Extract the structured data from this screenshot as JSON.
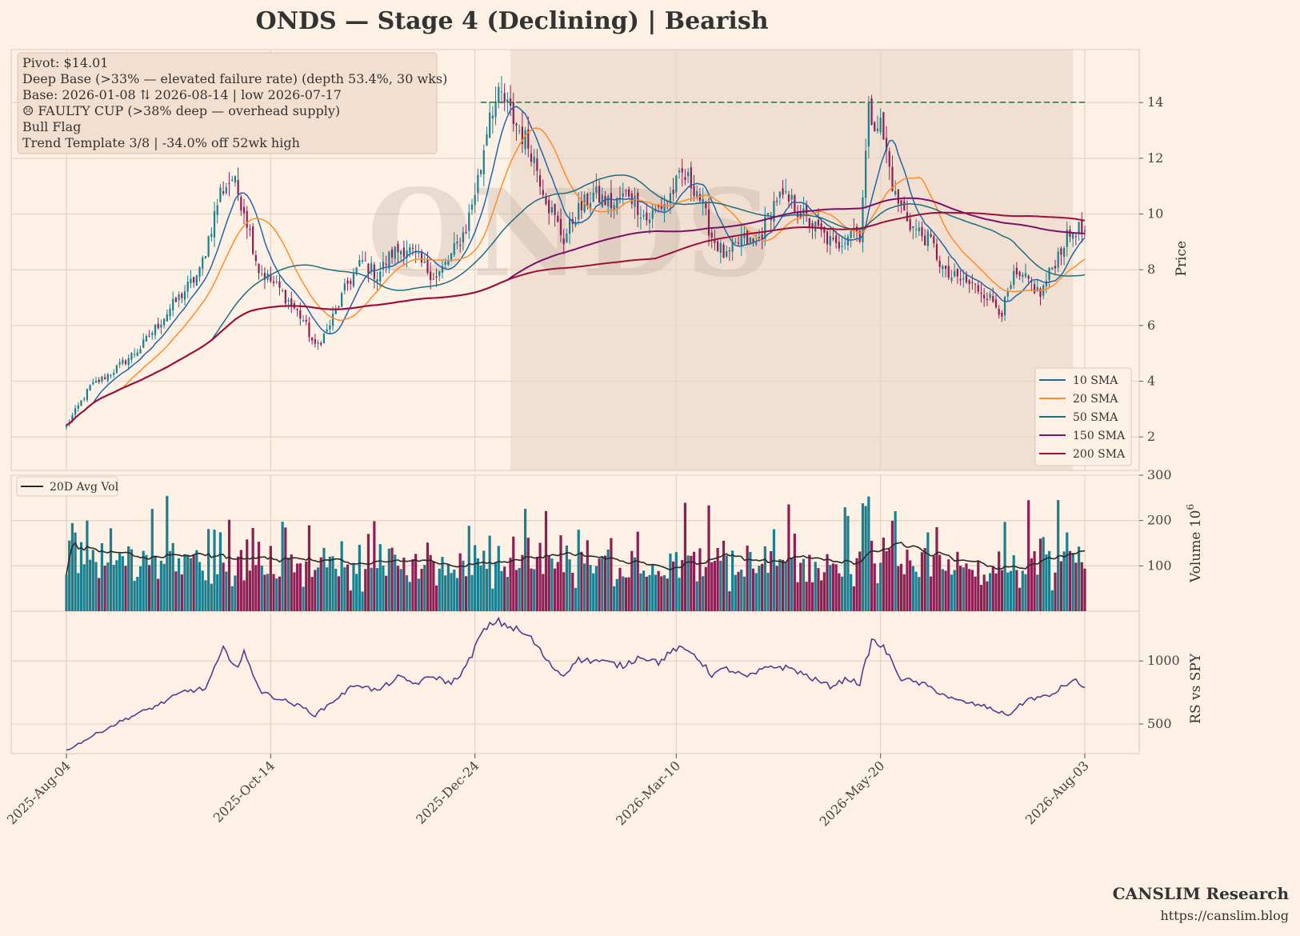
{
  "chart_data": {
    "type": "candlestick",
    "title": "ONDS  —  Stage 4 (Declining)  |  Bearish",
    "watermark": "ONDS",
    "x_ticks": [
      "2025-Aug-04",
      "2025-Oct-14",
      "2025-Dec-24",
      "2026-Mar-10",
      "2026-May-20",
      "2026-Aug-03"
    ],
    "price_axis": {
      "label": "Price",
      "ylim": [
        0.8,
        15.9
      ],
      "ticks": [
        2,
        4,
        6,
        8,
        10,
        12,
        14
      ]
    },
    "volume_axis": {
      "label": "Volume",
      "multiplier": "10",
      "multiplier_exp": "6",
      "ylim": [
        0,
        300
      ],
      "ticks": [
        100,
        200,
        300
      ]
    },
    "rs_axis": {
      "label": "RS vs SPY",
      "ylim": [
        265,
        1395
      ],
      "ticks": [
        500,
        1000
      ]
    },
    "pivot": 14.01,
    "base_shading": {
      "start": "2025-Dec-24 + ~1wk",
      "end": "2026-Aug"
    },
    "info_box": [
      "Pivot: $14.01",
      "Deep Base (>33% — elevated failure rate)  (depth 53.4%, 30 wks)",
      "Base: 2026-01-08 ⇅ 2026-08-14  |  low 2026-07-17",
      "☹ FAULTY CUP (>38% deep — overhead supply)",
      "Bull Flag",
      "Trend Template 3/8  |  -34.0% off 52wk high"
    ],
    "legend": [
      {
        "name": "10 SMA",
        "color": "#2166ac"
      },
      {
        "name": "20 SMA",
        "color": "#ff8c2a"
      },
      {
        "name": "50 SMA",
        "color": "#1a7080"
      },
      {
        "name": "150 SMA",
        "color": "#7a0f6e"
      },
      {
        "name": "200 SMA",
        "color": "#9e0e3a"
      }
    ],
    "volume_legend": "20D Avg Vol",
    "colors": {
      "up": "#1a7f8e",
      "down": "#8e1f55",
      "pivot": "#1a8a4a",
      "rs": "#5a3a8a",
      "avgvol": "#2a2a2a"
    },
    "price_anchors": [
      [
        0,
        2.4
      ],
      [
        8,
        3.8
      ],
      [
        15,
        4.3
      ],
      [
        25,
        5.2
      ],
      [
        35,
        6.6
      ],
      [
        45,
        7.9
      ],
      [
        52,
        10.8
      ],
      [
        56,
        11.3
      ],
      [
        60,
        10.2
      ],
      [
        65,
        8.0
      ],
      [
        72,
        7.3
      ],
      [
        80,
        6.2
      ],
      [
        84,
        5.2
      ],
      [
        88,
        5.8
      ],
      [
        95,
        7.5
      ],
      [
        100,
        8.3
      ],
      [
        105,
        7.8
      ],
      [
        110,
        8.6
      ],
      [
        115,
        8.8
      ],
      [
        120,
        8.2
      ],
      [
        125,
        7.7
      ],
      [
        130,
        8.5
      ],
      [
        135,
        9.5
      ],
      [
        140,
        11.7
      ],
      [
        143,
        13.8
      ],
      [
        147,
        14.2
      ],
      [
        152,
        13.2
      ],
      [
        157,
        12.3
      ],
      [
        163,
        10.3
      ],
      [
        168,
        9.1
      ],
      [
        172,
        10.0
      ],
      [
        178,
        10.7
      ],
      [
        185,
        10.3
      ],
      [
        190,
        10.8
      ],
      [
        196,
        9.8
      ],
      [
        203,
        10.5
      ],
      [
        208,
        11.4
      ],
      [
        213,
        10.9
      ],
      [
        218,
        9.2
      ],
      [
        223,
        8.4
      ],
      [
        228,
        9.1
      ],
      [
        233,
        8.9
      ],
      [
        240,
        10.6
      ],
      [
        245,
        10.4
      ],
      [
        250,
        9.8
      ],
      [
        256,
        9.2
      ],
      [
        260,
        8.8
      ],
      [
        265,
        9.5
      ],
      [
        268,
        9.3
      ],
      [
        271,
        13.6
      ],
      [
        275,
        13.2
      ],
      [
        280,
        10.6
      ],
      [
        286,
        9.5
      ],
      [
        292,
        9.0
      ],
      [
        297,
        7.8
      ],
      [
        303,
        7.6
      ],
      [
        310,
        7.2
      ],
      [
        316,
        6.5
      ],
      [
        320,
        7.7
      ],
      [
        325,
        7.6
      ],
      [
        329,
        7.1
      ],
      [
        333,
        8.1
      ],
      [
        337,
        9.0
      ],
      [
        341,
        9.5
      ],
      [
        344,
        9.3
      ]
    ],
    "rs_anchors": [
      [
        0,
        290
      ],
      [
        10,
        420
      ],
      [
        20,
        540
      ],
      [
        30,
        640
      ],
      [
        40,
        760
      ],
      [
        47,
        780
      ],
      [
        53,
        1090
      ],
      [
        58,
        950
      ],
      [
        60,
        1060
      ],
      [
        66,
        750
      ],
      [
        72,
        700
      ],
      [
        80,
        630
      ],
      [
        84,
        570
      ],
      [
        90,
        680
      ],
      [
        98,
        820
      ],
      [
        105,
        760
      ],
      [
        112,
        870
      ],
      [
        118,
        820
      ],
      [
        124,
        880
      ],
      [
        130,
        820
      ],
      [
        135,
        950
      ],
      [
        140,
        1210
      ],
      [
        145,
        1320
      ],
      [
        152,
        1250
      ],
      [
        157,
        1180
      ],
      [
        163,
        980
      ],
      [
        168,
        880
      ],
      [
        172,
        1010
      ],
      [
        180,
        1000
      ],
      [
        188,
        960
      ],
      [
        194,
        1040
      ],
      [
        200,
        990
      ],
      [
        206,
        1100
      ],
      [
        212,
        1060
      ],
      [
        218,
        890
      ],
      [
        223,
        940
      ],
      [
        230,
        870
      ],
      [
        238,
        960
      ],
      [
        245,
        940
      ],
      [
        252,
        860
      ],
      [
        258,
        800
      ],
      [
        264,
        860
      ],
      [
        268,
        820
      ],
      [
        272,
        1160
      ],
      [
        276,
        1110
      ],
      [
        282,
        860
      ],
      [
        290,
        810
      ],
      [
        300,
        690
      ],
      [
        310,
        640
      ],
      [
        318,
        570
      ],
      [
        325,
        700
      ],
      [
        332,
        720
      ],
      [
        338,
        820
      ],
      [
        341,
        840
      ],
      [
        344,
        790
      ]
    ],
    "volume_bars": 345,
    "n_sessions": 345
  },
  "footer": {
    "brand": "CANSLIM Research",
    "url": "https://canslim.blog"
  }
}
